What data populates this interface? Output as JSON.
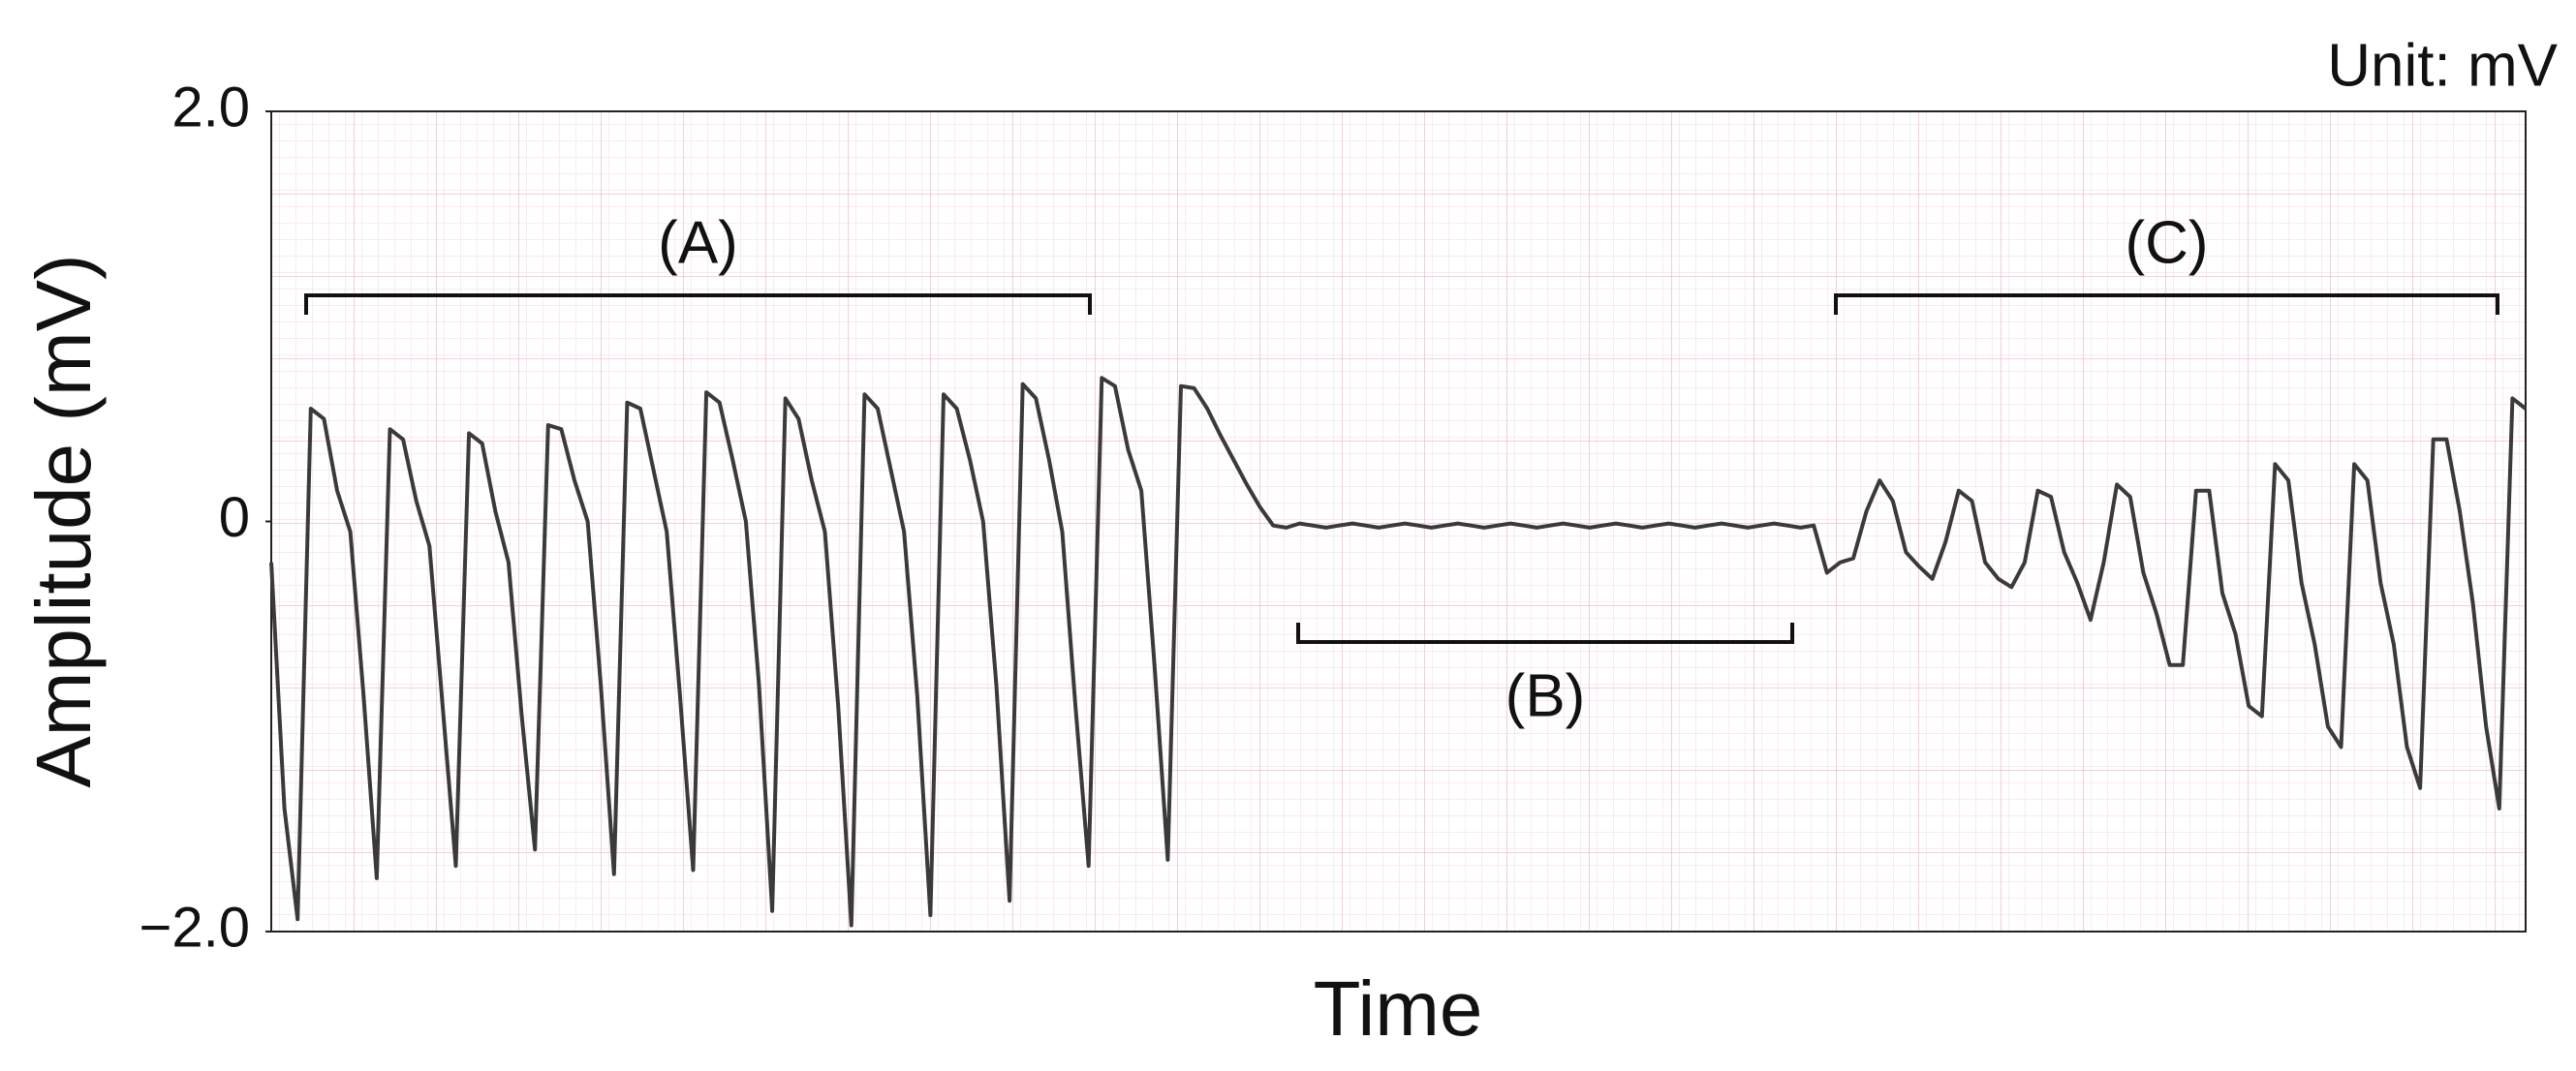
{
  "chart_data": {
    "type": "line",
    "unit_label": "Unit: mV",
    "y_label": "Amplitude (mV)",
    "x_label": "Time",
    "annotations": [
      "(A)",
      "(B)",
      "(C)"
    ],
    "color": "#3a3a3a",
    "ylim": [
      -2,
      2
    ],
    "yticks": [
      {
        "value": 2,
        "label": "2.0"
      },
      0,
      {
        "value": -2,
        "label": "−2.0"
      }
    ],
    "grid": true,
    "values": [
      -0.2,
      -1.4,
      -1.94,
      0.55,
      0.5,
      0.15,
      -0.05,
      -0.85,
      -1.74,
      0.45,
      0.4,
      0.1,
      -0.12,
      -0.9,
      -1.68,
      0.43,
      0.38,
      0.05,
      -0.2,
      -0.95,
      -1.6,
      0.47,
      0.45,
      0.2,
      0.0,
      -0.8,
      -1.72,
      0.58,
      0.55,
      0.25,
      -0.05,
      -0.85,
      -1.7,
      0.63,
      0.58,
      0.3,
      0.0,
      -0.8,
      -1.9,
      0.6,
      0.5,
      0.2,
      -0.05,
      -0.9,
      -1.97,
      0.62,
      0.55,
      0.25,
      -0.05,
      -0.85,
      -1.92,
      0.62,
      0.55,
      0.3,
      0.0,
      -0.8,
      -1.85,
      0.67,
      0.6,
      0.3,
      -0.05,
      -0.9,
      -1.68,
      0.7,
      0.66,
      0.35,
      0.15,
      -0.7,
      -1.65,
      0.66,
      0.65,
      0.55,
      0.42,
      0.3,
      0.18,
      0.07,
      -0.02,
      -0.03,
      -0.01,
      -0.02,
      -0.03,
      -0.02,
      -0.01,
      -0.02,
      -0.03,
      -0.02,
      -0.01,
      -0.02,
      -0.03,
      -0.02,
      -0.01,
      -0.02,
      -0.03,
      -0.02,
      -0.01,
      -0.02,
      -0.03,
      -0.02,
      -0.01,
      -0.02,
      -0.03,
      -0.02,
      -0.01,
      -0.02,
      -0.03,
      -0.02,
      -0.01,
      -0.02,
      -0.03,
      -0.02,
      -0.01,
      -0.02,
      -0.03,
      -0.02,
      -0.01,
      -0.02,
      -0.03,
      -0.02,
      -0.25,
      -0.2,
      -0.18,
      0.05,
      0.2,
      0.1,
      -0.15,
      -0.22,
      -0.28,
      -0.1,
      0.15,
      0.1,
      -0.2,
      -0.28,
      -0.32,
      -0.2,
      0.15,
      0.12,
      -0.15,
      -0.3,
      -0.48,
      -0.2,
      0.18,
      0.12,
      -0.25,
      -0.45,
      -0.7,
      -0.7,
      0.15,
      0.15,
      -0.35,
      -0.55,
      -0.9,
      -0.95,
      0.28,
      0.2,
      -0.3,
      -0.6,
      -1.0,
      -1.1,
      0.28,
      0.2,
      -0.3,
      -0.6,
      -1.1,
      -1.3,
      0.4,
      0.4,
      0.05,
      -0.4,
      -1.0,
      -1.4,
      0.6,
      0.55
    ]
  }
}
